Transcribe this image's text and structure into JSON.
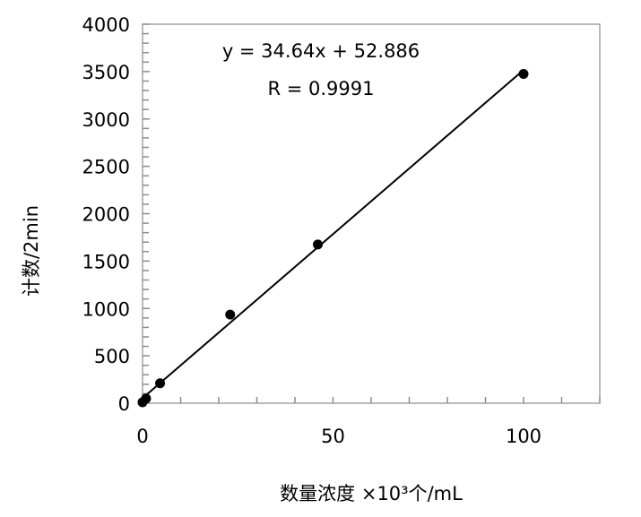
{
  "chart_data": {
    "type": "scatter",
    "title": "",
    "xlabel": "数量浓度 ×10³个/mL",
    "ylabel": "计数/2min",
    "xlim": [
      0,
      120
    ],
    "ylim": [
      0,
      4000
    ],
    "x_ticks": [
      0,
      50,
      100
    ],
    "y_ticks": [
      0,
      500,
      1000,
      1500,
      2000,
      2500,
      3000,
      3500,
      4000
    ],
    "grid": false,
    "points": {
      "x": [
        0,
        0.92,
        4.6,
        23,
        46,
        100
      ],
      "y": [
        10,
        50,
        210,
        935,
        1675,
        3475
      ]
    },
    "trendline": {
      "slope": 34.64,
      "intercept": 52.886,
      "x_range": [
        0,
        100
      ]
    },
    "annotations": {
      "equation": "y = 34.64x + 52.886",
      "r": "R = 0.9991"
    },
    "colors": {
      "points": "#000000",
      "line": "#000000",
      "axis": "#808080"
    }
  }
}
